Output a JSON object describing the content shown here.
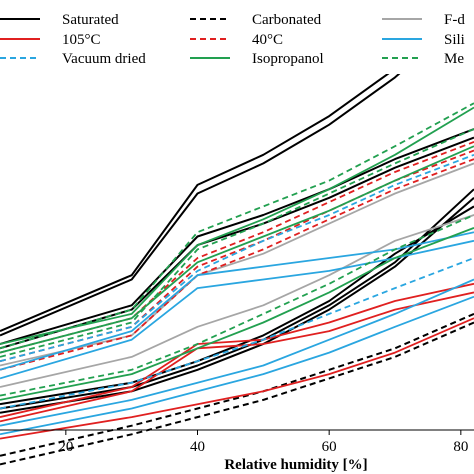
{
  "chart_data": {
    "type": "line",
    "title": "",
    "xlabel": "Relative humidity [%]",
    "ylabel": "",
    "xlim": [
      10,
      82
    ],
    "ylim": [
      0,
      100
    ],
    "xticks": [
      20,
      40,
      60,
      80
    ],
    "grid": false,
    "legend_position": "top",
    "legend": [
      {
        "label": "Saturated",
        "color": "#000000",
        "dash": "solid"
      },
      {
        "label": "Carbonated",
        "color": "#000000",
        "dash": "dashed"
      },
      {
        "label": "F-d",
        "color": "#a6a6a6",
        "dash": "solid"
      },
      {
        "label": "105°C",
        "color": "#e02020",
        "dash": "solid"
      },
      {
        "label": "40°C",
        "color": "#e02020",
        "dash": "dashed"
      },
      {
        "label": "Sili",
        "color": "#2aa6e0",
        "dash": "solid"
      },
      {
        "label": "Vacuum dried",
        "color": "#2aa6e0",
        "dash": "dashed"
      },
      {
        "label": "Isopropanol",
        "color": "#22a050",
        "dash": "solid"
      },
      {
        "label": "Me",
        "color": "#22a050",
        "dash": "dashed"
      }
    ],
    "series": [
      {
        "style": 0,
        "x": [
          10,
          30,
          40,
          50,
          60,
          70,
          82
        ],
        "y": [
          23,
          36,
          57,
          64,
          73,
          84,
          100
        ]
      },
      {
        "style": 0,
        "x": [
          10,
          30,
          40,
          50,
          60,
          70,
          82
        ],
        "y": [
          22,
          35,
          55,
          62,
          71,
          82,
          98
        ]
      },
      {
        "style": 0,
        "x": [
          10,
          30,
          40,
          50,
          60,
          70,
          82
        ],
        "y": [
          20,
          29,
          45,
          50,
          56,
          63,
          70
        ]
      },
      {
        "style": 0,
        "x": [
          10,
          30,
          40,
          50,
          60,
          70,
          82
        ],
        "y": [
          19,
          28,
          43,
          48,
          54,
          61,
          68
        ]
      },
      {
        "style": 0,
        "x": [
          10,
          30,
          40,
          50,
          60,
          70,
          82
        ],
        "y": [
          5,
          10,
          15,
          21,
          29,
          39,
          56
        ]
      },
      {
        "style": 0,
        "x": [
          10,
          30,
          40,
          50,
          60,
          70,
          82
        ],
        "y": [
          4,
          9,
          14,
          20,
          28,
          38,
          54
        ]
      },
      {
        "style": 0,
        "x": [
          10,
          30,
          40,
          50,
          60,
          70,
          82
        ],
        "y": [
          6,
          11,
          16,
          22,
          30,
          41,
          52
        ]
      },
      {
        "style": 1,
        "x": [
          10,
          30,
          40,
          50,
          60,
          70,
          82
        ],
        "y": [
          -6,
          1,
          5,
          9,
          14,
          19,
          27
        ]
      },
      {
        "style": 1,
        "x": [
          10,
          30,
          40,
          50,
          60,
          70,
          82
        ],
        "y": [
          -8,
          -1,
          3,
          7,
          12,
          17,
          25
        ]
      },
      {
        "style": 2,
        "x": [
          10,
          30,
          40,
          50,
          60,
          70,
          82
        ],
        "y": [
          15,
          22,
          36,
          41,
          48,
          55,
          62
        ]
      },
      {
        "style": 2,
        "x": [
          10,
          30,
          40,
          50,
          60,
          70,
          82
        ],
        "y": [
          10,
          17,
          24,
          29,
          36,
          44,
          50
        ]
      },
      {
        "style": 3,
        "x": [
          10,
          30,
          40,
          50,
          60,
          70,
          82
        ],
        "y": [
          3,
          10,
          20,
          21,
          25,
          30,
          34
        ]
      },
      {
        "style": 3,
        "x": [
          10,
          30,
          40,
          50,
          60,
          70,
          82
        ],
        "y": [
          2,
          9,
          19,
          20,
          23,
          28,
          32
        ]
      },
      {
        "style": 3,
        "x": [
          10,
          30,
          40,
          50,
          60,
          70,
          82
        ],
        "y": [
          -2,
          3,
          6,
          9,
          13,
          18,
          26
        ]
      },
      {
        "style": 4,
        "x": [
          10,
          30,
          40,
          50,
          60,
          70,
          82
        ],
        "y": [
          18,
          26,
          40,
          46,
          53,
          60,
          67
        ]
      },
      {
        "style": 4,
        "x": [
          10,
          30,
          40,
          50,
          60,
          70,
          82
        ],
        "y": [
          16,
          24,
          38,
          44,
          51,
          58,
          65
        ]
      },
      {
        "style": 4,
        "x": [
          10,
          30,
          40,
          50,
          60,
          70,
          82
        ],
        "y": [
          14,
          22,
          36,
          42,
          49,
          56,
          63
        ]
      },
      {
        "style": 5,
        "x": [
          10,
          30,
          40,
          50,
          60,
          70,
          82
        ],
        "y": [
          14,
          23,
          36,
          38,
          40,
          42,
          46
        ]
      },
      {
        "style": 5,
        "x": [
          10,
          30,
          40,
          50,
          60,
          70,
          82
        ],
        "y": [
          12,
          21,
          33,
          35,
          37,
          40,
          44
        ]
      },
      {
        "style": 5,
        "x": [
          10,
          30,
          40,
          50,
          60,
          70,
          82
        ],
        "y": [
          -1,
          5,
          9,
          13,
          18,
          24,
          31
        ]
      },
      {
        "style": 5,
        "x": [
          10,
          30,
          40,
          50,
          60,
          70,
          82
        ],
        "y": [
          1,
          7,
          11,
          15,
          21,
          27,
          35
        ]
      },
      {
        "style": 6,
        "x": [
          10,
          30,
          40,
          50,
          60,
          70,
          82
        ],
        "y": [
          16,
          24,
          37,
          44,
          50,
          57,
          64
        ]
      },
      {
        "style": 6,
        "x": [
          10,
          30,
          40,
          50,
          60,
          70,
          82
        ],
        "y": [
          5,
          11,
          16,
          21,
          27,
          33,
          40
        ]
      },
      {
        "style": 7,
        "x": [
          10,
          30,
          40,
          50,
          60,
          70,
          82
        ],
        "y": [
          20,
          27,
          43,
          49,
          56,
          64,
          75
        ]
      },
      {
        "style": 7,
        "x": [
          10,
          30,
          40,
          50,
          60,
          70,
          82
        ],
        "y": [
          18,
          26,
          39,
          45,
          51,
          58,
          66
        ]
      },
      {
        "style": 7,
        "x": [
          10,
          30,
          40,
          50,
          60,
          70,
          82
        ],
        "y": [
          7,
          13,
          19,
          25,
          32,
          40,
          47
        ]
      },
      {
        "style": 8,
        "x": [
          10,
          30,
          40,
          50,
          60,
          70,
          82
        ],
        "y": [
          19,
          28,
          46,
          52,
          58,
          66,
          76
        ]
      },
      {
        "style": 8,
        "x": [
          10,
          30,
          40,
          50,
          60,
          70,
          82
        ],
        "y": [
          17,
          25,
          42,
          48,
          55,
          62,
          70
        ]
      },
      {
        "style": 8,
        "x": [
          10,
          30,
          40,
          50,
          60,
          70,
          82
        ],
        "y": [
          8,
          14,
          20,
          27,
          34,
          42,
          50
        ]
      }
    ]
  }
}
